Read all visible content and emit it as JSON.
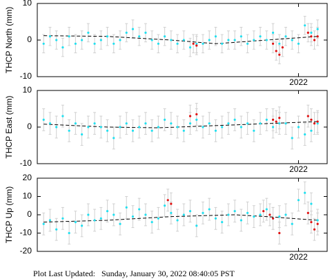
{
  "chart_data": [
    {
      "type": "scatter",
      "ylabel": "THCP North (mm)",
      "xlim": [
        2017.9,
        2022.45
      ],
      "xticks": [
        2022
      ],
      "ylim": [
        -10,
        10
      ],
      "yticks": [
        -10,
        0,
        10
      ],
      "x": [
        2018.0,
        2018.1,
        2018.2,
        2018.3,
        2018.4,
        2018.5,
        2018.6,
        2018.7,
        2018.8,
        2018.9,
        2019.0,
        2019.1,
        2019.2,
        2019.3,
        2019.4,
        2019.5,
        2019.6,
        2019.7,
        2019.8,
        2019.9,
        2020.0,
        2020.1,
        2020.2,
        2020.3,
        2020.4,
        2020.5,
        2020.6,
        2020.7,
        2020.8,
        2020.9,
        2021.0,
        2021.1,
        2021.2,
        2021.3,
        2021.4,
        2021.5,
        2021.6,
        2021.7,
        2021.8,
        2021.9,
        2022.0,
        2022.1,
        2022.2,
        2022.3
      ],
      "series": [
        {
          "color": "#22e0f0",
          "error": 2.5,
          "values": [
            -1,
            1,
            0,
            -2,
            1,
            -1,
            0,
            2,
            -1,
            0,
            1,
            -1,
            0,
            2,
            3,
            1,
            2,
            0,
            -1,
            1,
            0,
            -1,
            0,
            -2,
            -1,
            -1,
            0,
            1,
            -1,
            0,
            0,
            1,
            -1,
            0,
            1,
            0,
            2,
            -1,
            1,
            0,
            -1,
            4,
            2,
            3
          ]
        },
        {
          "color": "#e01010",
          "error": 2.5,
          "x": [
            2020.35,
            2020.4,
            2021.6,
            2021.65,
            2021.7,
            2021.75,
            2022.15,
            2022.2,
            2022.25,
            2022.3
          ],
          "values": [
            -1,
            -1.5,
            -1,
            -3,
            -4,
            -2,
            2,
            1,
            0,
            1
          ]
        }
      ],
      "trend": {
        "color": "#000000",
        "x": [
          2018,
          2019,
          2020,
          2020.7,
          2021.5,
          2022.3
        ],
        "values": [
          1.2,
          1,
          0,
          -1,
          0,
          1
        ]
      }
    },
    {
      "type": "scatter",
      "ylabel": "THCP East (mm)",
      "xlim": [
        2017.9,
        2022.45
      ],
      "xticks": [
        2022
      ],
      "ylim": [
        -10,
        10
      ],
      "yticks": [
        -10,
        0,
        10
      ],
      "x": [
        2018.0,
        2018.1,
        2018.2,
        2018.3,
        2018.4,
        2018.5,
        2018.6,
        2018.7,
        2018.8,
        2018.9,
        2019.0,
        2019.1,
        2019.2,
        2019.3,
        2019.4,
        2019.5,
        2019.6,
        2019.7,
        2019.8,
        2019.9,
        2020.0,
        2020.1,
        2020.2,
        2020.3,
        2020.4,
        2020.5,
        2020.6,
        2020.7,
        2020.8,
        2020.9,
        2021.0,
        2021.1,
        2021.2,
        2021.3,
        2021.4,
        2021.5,
        2021.6,
        2021.7,
        2021.8,
        2021.9,
        2022.0,
        2022.1,
        2022.2,
        2022.3
      ],
      "series": [
        {
          "color": "#22e0f0",
          "error": 3,
          "values": [
            2,
            1,
            0,
            3,
            -1,
            1,
            -2,
            0,
            1,
            0,
            -1,
            -3,
            0,
            1,
            -1,
            0,
            1,
            -1,
            0,
            2,
            1,
            0,
            -1,
            1,
            2,
            0,
            1,
            -1,
            0,
            1,
            2,
            0,
            1,
            -1,
            1,
            2,
            0,
            1,
            1,
            -3,
            0,
            -2,
            -1,
            1
          ]
        },
        {
          "color": "#e01010",
          "error": 3,
          "x": [
            2020.3,
            2020.4,
            2021.6,
            2021.65,
            2021.7,
            2022.15,
            2022.2,
            2022.25,
            2022.3
          ],
          "values": [
            3,
            3.5,
            2,
            1.5,
            2.5,
            3,
            2,
            1,
            1.5
          ]
        }
      ],
      "trend": {
        "color": "#000000",
        "x": [
          2018,
          2019,
          2019.8,
          2021,
          2022.3
        ],
        "values": [
          0.8,
          0,
          -0.2,
          0.6,
          1.5
        ]
      }
    },
    {
      "type": "scatter",
      "ylabel": "THCP Up (mm)",
      "xlim": [
        2017.9,
        2022.45
      ],
      "xticks": [
        2022
      ],
      "ylim": [
        -20,
        20
      ],
      "yticks": [
        -20,
        -10,
        0,
        10,
        20
      ],
      "x": [
        2018.0,
        2018.1,
        2018.2,
        2018.3,
        2018.4,
        2018.5,
        2018.6,
        2018.7,
        2018.8,
        2018.9,
        2019.0,
        2019.1,
        2019.2,
        2019.3,
        2019.4,
        2019.5,
        2019.6,
        2019.7,
        2019.8,
        2019.9,
        2020.0,
        2020.1,
        2020.2,
        2020.3,
        2020.4,
        2020.5,
        2020.6,
        2020.7,
        2020.8,
        2020.9,
        2021.0,
        2021.1,
        2021.2,
        2021.3,
        2021.4,
        2021.5,
        2021.6,
        2021.7,
        2021.8,
        2021.9,
        2022.0,
        2022.1,
        2022.2,
        2022.3
      ],
      "series": [
        {
          "color": "#22e0f0",
          "error": 6,
          "values": [
            -5,
            -3,
            -8,
            -2,
            -10,
            -4,
            -6,
            0,
            -3,
            -2,
            2,
            0,
            -5,
            4,
            -1,
            3,
            0,
            -4,
            -2,
            5,
            1,
            -3,
            0,
            2,
            -6,
            1,
            3,
            -2,
            -4,
            0,
            2,
            -3,
            1,
            -1,
            0,
            3,
            -2,
            -1,
            0,
            -5,
            8,
            12,
            6,
            -3
          ]
        },
        {
          "color": "#e01010",
          "error": 6,
          "x": [
            2019.95,
            2020.0,
            2021.45,
            2021.55,
            2021.6,
            2021.7,
            2022.15,
            2022.2,
            2022.25,
            2022.3
          ],
          "values": [
            8,
            6,
            2,
            0,
            -2,
            -10,
            1,
            -4,
            -8,
            -5
          ]
        }
      ],
      "trend": {
        "color": "#000000",
        "x": [
          2018,
          2019,
          2020,
          2021,
          2021.5,
          2022.3
        ],
        "values": [
          -4,
          -3,
          -1,
          0,
          -1,
          -3
        ]
      }
    }
  ],
  "footer": "Plot Last Updated:   Sunday, January 30, 2022 08:40:05 PST"
}
